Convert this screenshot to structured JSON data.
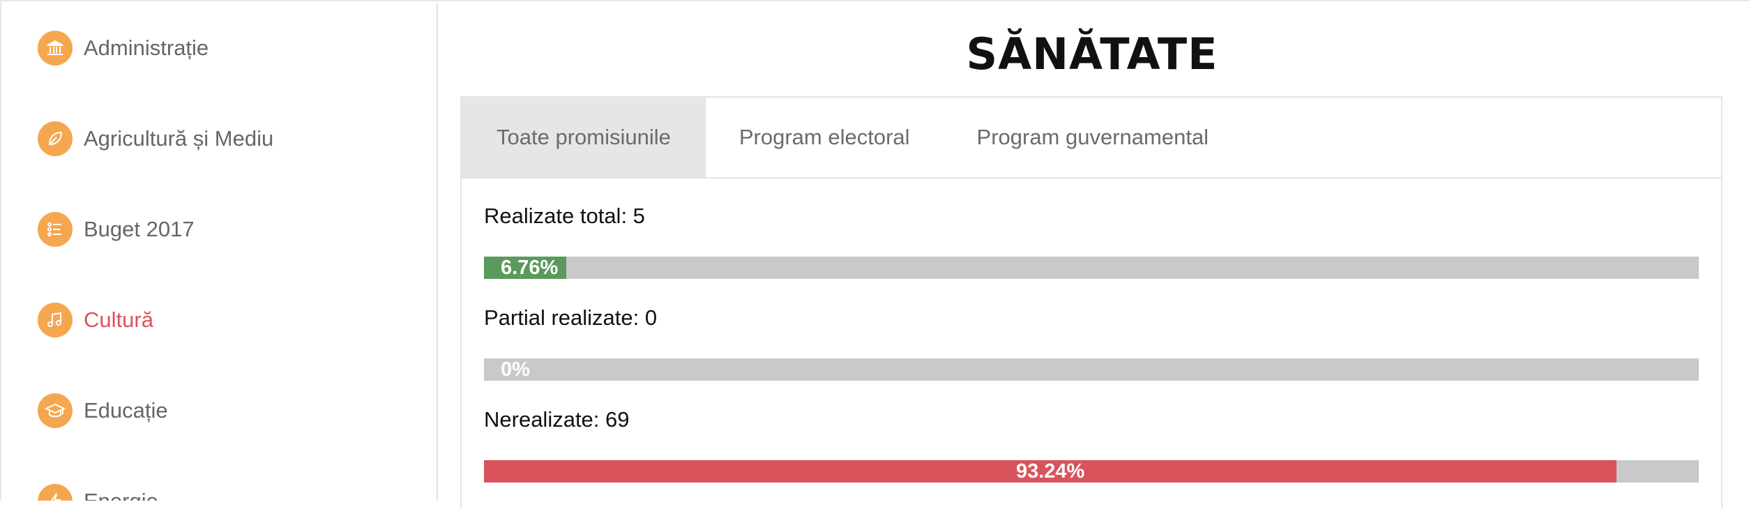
{
  "sidebar": {
    "items": [
      {
        "label": "Administrație",
        "icon": "institution-icon"
      },
      {
        "label": "Agricultură și Mediu",
        "icon": "leaf-icon"
      },
      {
        "label": "Buget 2017",
        "icon": "list-icon"
      },
      {
        "label": "Cultură",
        "icon": "music-note-icon",
        "active": true
      },
      {
        "label": "Educație",
        "icon": "graduation-cap-icon"
      },
      {
        "label": "Energie",
        "icon": "lightning-icon"
      }
    ]
  },
  "main": {
    "title": "SĂNĂTATE",
    "tabs": [
      {
        "label": "Toate promisiunile",
        "active": true
      },
      {
        "label": "Program electoral"
      },
      {
        "label": "Program guvernamental"
      }
    ],
    "stats": [
      {
        "label": "Realizate total: 5",
        "percent_text": "6.76%",
        "fraction": 0.0676,
        "color": "#5a9a5c"
      },
      {
        "label": "Partial realizate: 0",
        "percent_text": "0%",
        "fraction": 0,
        "color": "#f0ad4e"
      },
      {
        "label": "Nerealizate: 69",
        "percent_text": "93.24%",
        "fraction": 0.9324,
        "color": "#d9535c"
      }
    ]
  },
  "colors": {
    "accent_orange": "#f5a74f",
    "active_red": "#d9535c",
    "track_gray": "#c9c9c9"
  }
}
